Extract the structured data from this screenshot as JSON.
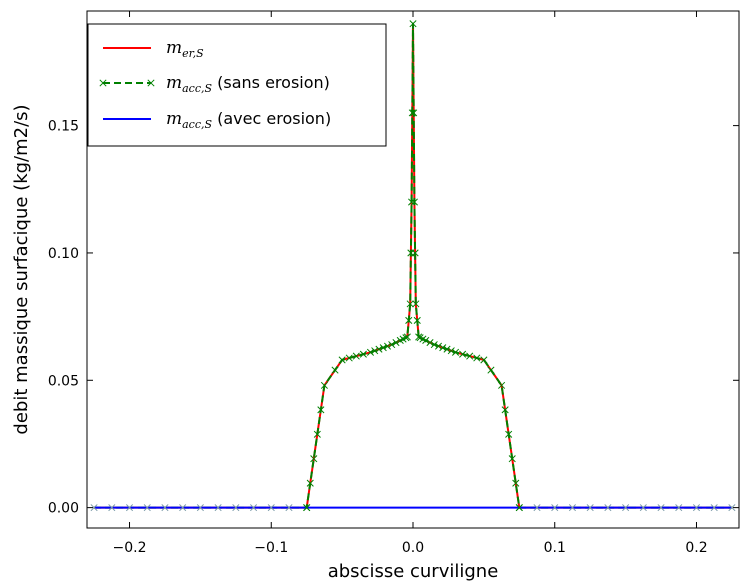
{
  "chart_data": {
    "type": "line",
    "xlabel": "abscisse curviligne",
    "ylabel": "debit massique surfacique (kg/m2/s)",
    "xlim": [
      -0.23,
      0.23
    ],
    "ylim": [
      -0.008,
      0.195
    ],
    "xticks": [
      -0.2,
      -0.1,
      0.0,
      0.1,
      0.2
    ],
    "xtick_labels": [
      "−0.2",
      "−0.1",
      "0.0",
      "0.1",
      "0.2"
    ],
    "yticks": [
      0.0,
      0.05,
      0.1,
      0.15
    ],
    "ytick_labels": [
      "0.00",
      "0.05",
      "0.10",
      "0.15"
    ],
    "grid": false,
    "legend_position": "top-left",
    "series": [
      {
        "name": "m_er,S",
        "legend_main": "m",
        "legend_sub": "er,S",
        "legend_suffix": "",
        "color": "#ff0000",
        "style": "solid",
        "marker": "none",
        "x": [
          -0.225,
          -0.075,
          -0.0625,
          -0.05,
          -0.03,
          -0.015,
          -0.004,
          -0.002,
          -0.001,
          0.0,
          0.001,
          0.002,
          0.004,
          0.015,
          0.03,
          0.05,
          0.0625,
          0.075,
          0.225
        ],
        "y": [
          0.0,
          0.0,
          0.048,
          0.058,
          0.061,
          0.064,
          0.067,
          0.08,
          0.12,
          0.19,
          0.12,
          0.08,
          0.067,
          0.064,
          0.061,
          0.058,
          0.048,
          0.0,
          0.0
        ]
      },
      {
        "name": "m_acc,S (sans erosion)",
        "legend_main": "m",
        "legend_sub": "acc,S",
        "legend_suffix": " (sans erosion)",
        "color": "#008000",
        "style": "dashed",
        "marker": "x",
        "x": [
          -0.225,
          -0.075,
          -0.0625,
          -0.05,
          -0.03,
          -0.015,
          -0.004,
          -0.002,
          -0.001,
          0.0,
          0.001,
          0.002,
          0.004,
          0.015,
          0.03,
          0.05,
          0.0625,
          0.075,
          0.225
        ],
        "y": [
          0.0,
          0.0,
          0.048,
          0.058,
          0.061,
          0.064,
          0.067,
          0.08,
          0.12,
          0.19,
          0.12,
          0.08,
          0.067,
          0.064,
          0.061,
          0.058,
          0.048,
          0.0,
          0.0
        ]
      },
      {
        "name": "m_acc,S (avec erosion)",
        "legend_main": "m",
        "legend_sub": "acc,S",
        "legend_suffix": " (avec erosion)",
        "color": "#0000ff",
        "style": "solid",
        "marker": "none",
        "x": [
          -0.225,
          0.225
        ],
        "y": [
          0.0,
          0.0
        ]
      }
    ]
  }
}
